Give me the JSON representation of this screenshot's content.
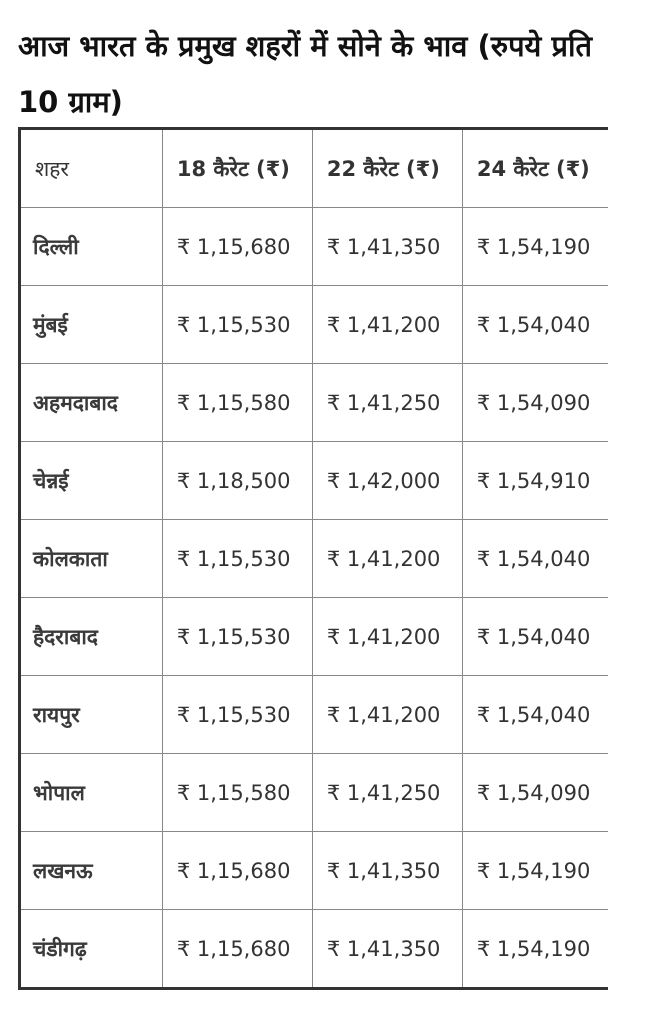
{
  "title": "आज भारत के प्रमुख शहरों में सोने के भाव (रुपये प्रति 10 ग्राम)",
  "table": {
    "headers": [
      "शहर",
      "18 कैरेट (₹)",
      "22 कैरेट (₹)",
      "24 कैरेट (₹)"
    ],
    "rows": [
      [
        "दिल्ली",
        "₹ 1,15,680",
        "₹ 1,41,350",
        "₹ 1,54,190"
      ],
      [
        "मुंबई",
        "₹ 1,15,530",
        "₹ 1,41,200",
        "₹ 1,54,040"
      ],
      [
        "अहमदाबाद",
        "₹ 1,15,580",
        "₹ 1,41,250",
        "₹ 1,54,090"
      ],
      [
        "चेन्नई",
        "₹ 1,18,500",
        "₹ 1,42,000",
        "₹ 1,54,910"
      ],
      [
        "कोलकाता",
        "₹ 1,15,530",
        "₹ 1,41,200",
        "₹ 1,54,040"
      ],
      [
        "हैदराबाद",
        "₹ 1,15,530",
        "₹ 1,41,200",
        "₹ 1,54,040"
      ],
      [
        "रायपुर",
        "₹ 1,15,530",
        "₹ 1,41,200",
        "₹ 1,54,040"
      ],
      [
        "भोपाल",
        "₹ 1,15,580",
        "₹ 1,41,250",
        "₹ 1,54,090"
      ],
      [
        "लखनऊ",
        "₹ 1,15,680",
        "₹ 1,41,350",
        "₹ 1,54,190"
      ],
      [
        "चंडीगढ़",
        "₹ 1,15,680",
        "₹ 1,41,350",
        "₹ 1,54,190"
      ]
    ]
  }
}
